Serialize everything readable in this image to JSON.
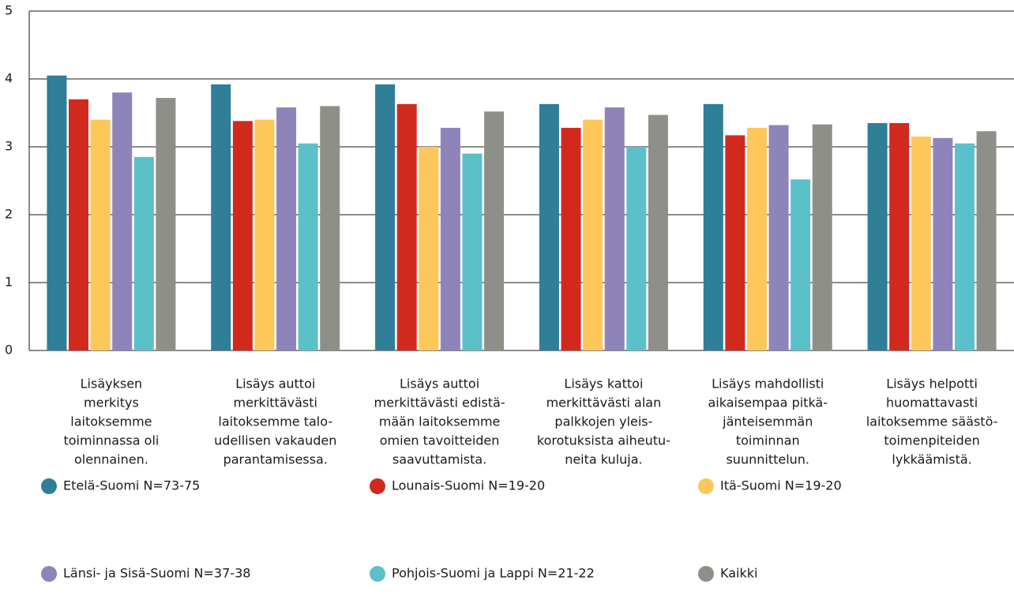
{
  "chart_data": {
    "type": "bar",
    "categories": [
      [
        "Lisäyksen",
        "merkitys",
        "laitoksemme",
        "toiminnassa oli",
        "olennainen."
      ],
      [
        "Lisäys auttoi",
        "merkittävästi",
        "laitoksemme talo-",
        "udellisen vakauden",
        "parantamisessa."
      ],
      [
        "Lisäys auttoi",
        "merkittävästi edistä-",
        "mään laitoksemme",
        "omien tavoitteiden",
        "saavuttamista."
      ],
      [
        "Lisäys kattoi",
        "merkittävästi alan",
        "palkkojen yleis-",
        "korotuksista aiheutu-",
        "neita kuluja."
      ],
      [
        "Lisäys mahdollisti",
        "aikaisempaa pitkä-",
        "jänteisemmän",
        "toiminnan",
        "suunnittelun."
      ],
      [
        "Lisäys helpotti",
        "huomattavasti",
        "laitoksemme säästö-",
        "toimenpiteiden",
        "lykkäämistä."
      ]
    ],
    "series": [
      {
        "name": "Etelä-Suomi N=73-75",
        "color": "#2e7f97",
        "values": [
          4.05,
          3.92,
          3.92,
          3.63,
          3.63,
          3.35
        ]
      },
      {
        "name": "Lounais-Suomi N=19-20",
        "color": "#d2291e",
        "values": [
          3.7,
          3.38,
          3.63,
          3.28,
          3.17,
          3.35
        ]
      },
      {
        "name": "Itä-Suomi N=19-20",
        "color": "#fdc75a",
        "values": [
          3.4,
          3.4,
          3.0,
          3.4,
          3.28,
          3.15
        ]
      },
      {
        "name": "Länsi- ja Sisä-Suomi N=37-38",
        "color": "#8e84b9",
        "values": [
          3.8,
          3.58,
          3.28,
          3.58,
          3.32,
          3.13
        ]
      },
      {
        "name": "Pohjois-Suomi ja Lappi N=21-22",
        "color": "#5cc0c9",
        "values": [
          2.85,
          3.05,
          2.9,
          3.0,
          2.52,
          3.05
        ]
      },
      {
        "name": "Kaikki",
        "color": "#8f8f89",
        "values": [
          3.72,
          3.6,
          3.52,
          3.47,
          3.33,
          3.23
        ]
      }
    ],
    "ylim": [
      0,
      5
    ],
    "yticks": [
      0,
      1,
      2,
      3,
      4,
      5
    ],
    "grid": true
  }
}
